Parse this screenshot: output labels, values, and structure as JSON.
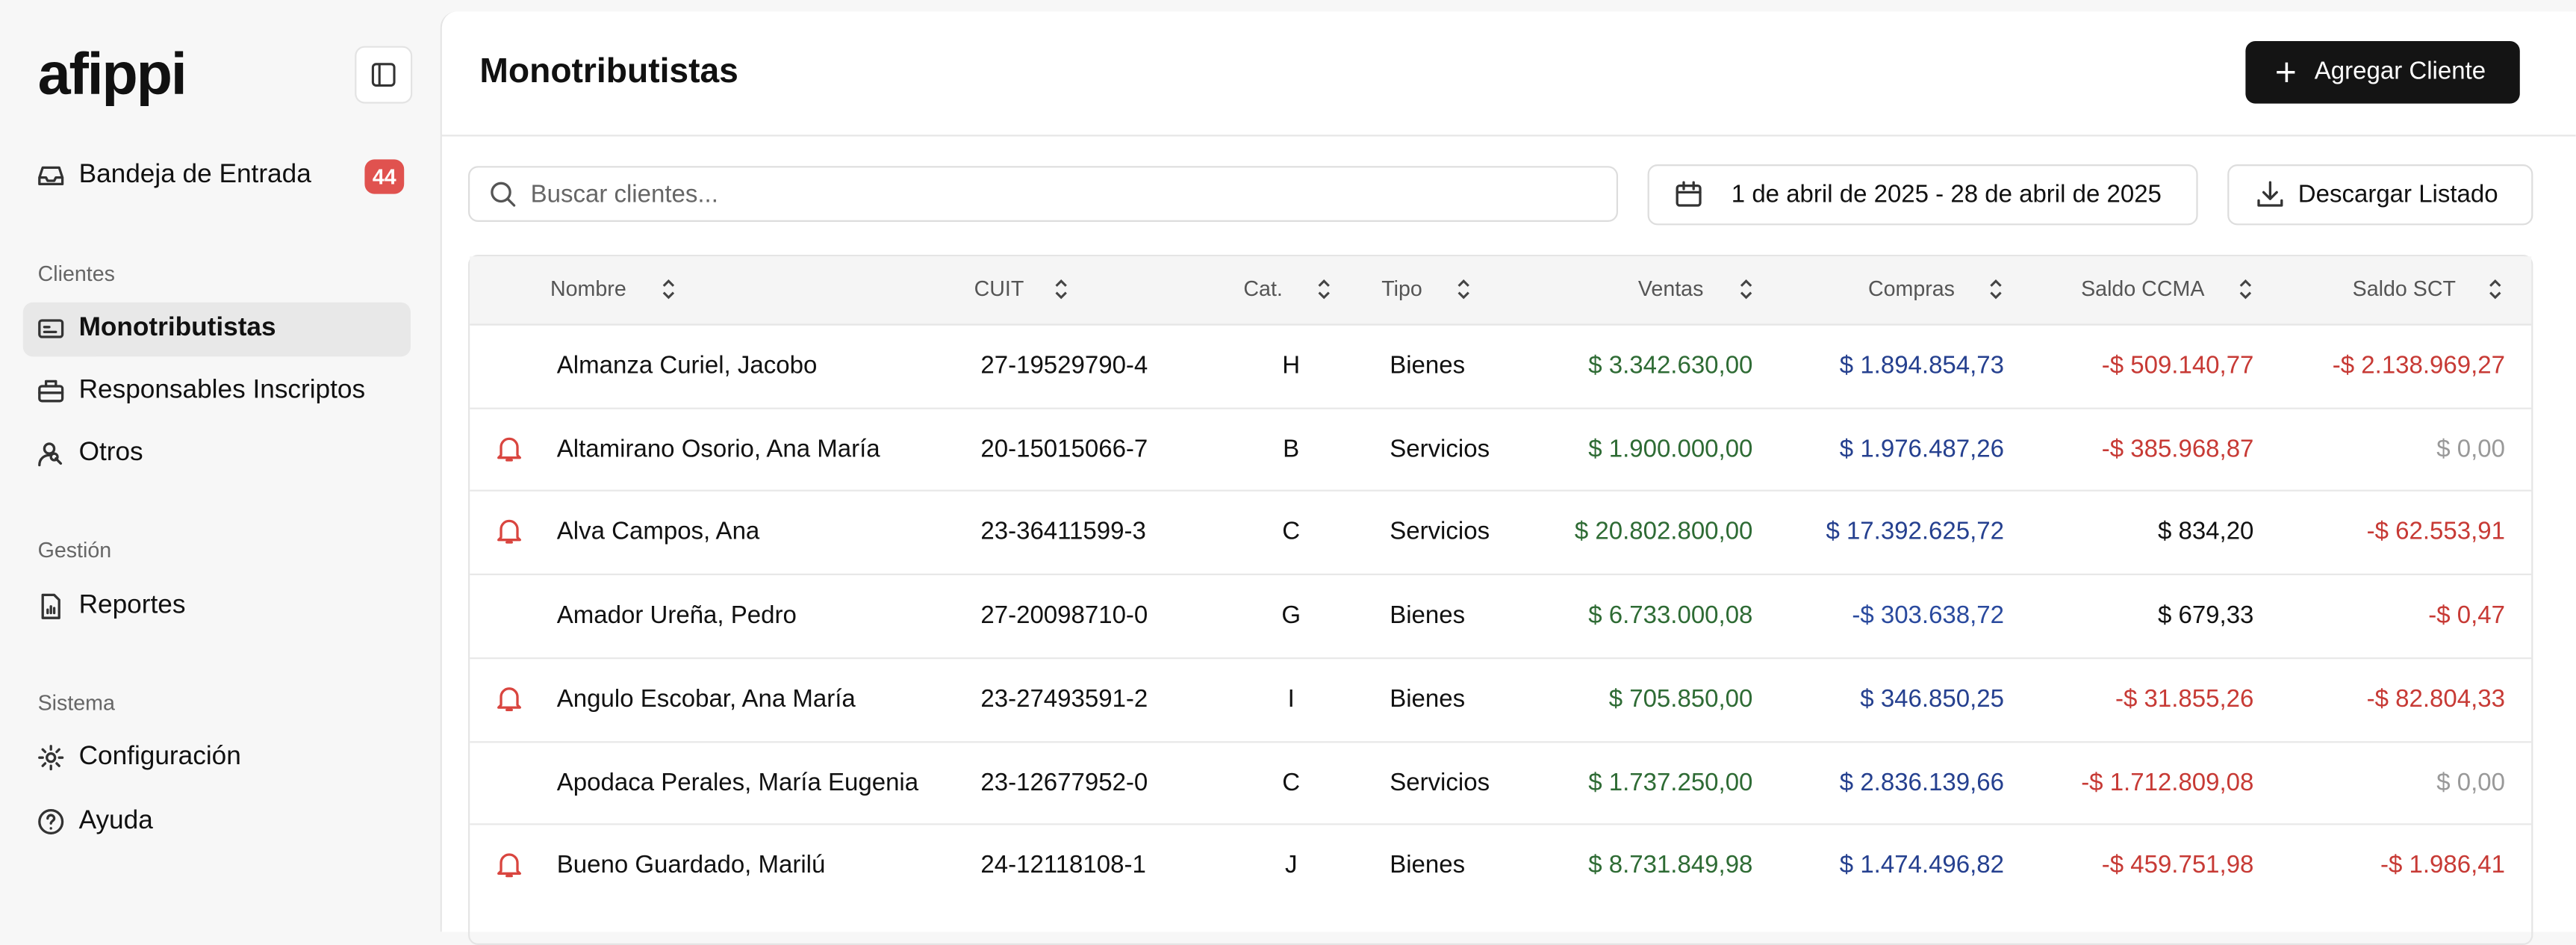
{
  "sidebar": {
    "logo": "afippi",
    "inbox": {
      "label": "Bandeja de Entrada",
      "badge": "44"
    },
    "sections": [
      {
        "title": "Clientes",
        "items": [
          "Monotributistas",
          "Responsables Inscriptos",
          "Otros"
        ]
      },
      {
        "title": "Gestión",
        "items": [
          "Reportes"
        ]
      },
      {
        "title": "Sistema",
        "items": [
          "Configuración",
          "Ayuda"
        ]
      }
    ],
    "active": "Monotributistas"
  },
  "header": {
    "title": "Monotributistas",
    "button": "Agregar Cliente"
  },
  "toolbar": {
    "search_placeholder": "Buscar clientes...",
    "date_range": "1 de abril de 2025 - 28 de abril de 2025",
    "download": "Descargar Listado"
  },
  "table": {
    "columns": [
      "Nombre",
      "CUIT",
      "Cat.",
      "Tipo",
      "Ventas",
      "Compras",
      "Saldo CCMA",
      "Saldo SCT"
    ],
    "rows": [
      {
        "alert": false,
        "cells": [
          "Almanza Curiel, Jacobo",
          "27-19529790-4",
          "H",
          "Bienes",
          "$ 3.342.630,00",
          "$ 1.894.854,73",
          "-$ 509.140,77",
          "-$ 2.138.969,27"
        ]
      },
      {
        "alert": true,
        "cells": [
          "Altamirano Osorio, Ana María",
          "20-15015066-7",
          "B",
          "Servicios",
          "$ 1.900.000,00",
          "$ 1.976.487,26",
          "-$ 385.968,87",
          "$ 0,00"
        ]
      },
      {
        "alert": true,
        "cells": [
          "Alva Campos, Ana",
          "23-36411599-3",
          "C",
          "Servicios",
          "$ 20.802.800,00",
          "$ 17.392.625,72",
          "$ 834,20",
          "-$ 62.553,91"
        ]
      },
      {
        "alert": false,
        "cells": [
          "Amador Ureña, Pedro",
          "27-20098710-0",
          "G",
          "Bienes",
          "$ 6.733.000,08",
          "-$ 303.638,72",
          "$ 679,33",
          "-$ 0,47"
        ]
      },
      {
        "alert": true,
        "cells": [
          "Angulo Escobar, Ana María",
          "23-27493591-2",
          "I",
          "Bienes",
          "$ 705.850,00",
          "$ 346.850,25",
          "-$ 31.855,26",
          "-$ 82.804,33"
        ]
      },
      {
        "alert": false,
        "cells": [
          "Apodaca Perales, María Eugenia",
          "23-12677952-0",
          "C",
          "Servicios",
          "$ 1.737.250,00",
          "$ 2.836.139,66",
          "-$ 1.712.809,08",
          "$ 0,00"
        ]
      },
      {
        "alert": true,
        "cells": [
          "Bueno Guardado, Marilú",
          "24-12118108-1",
          "J",
          "Bienes",
          "$ 8.731.849,98",
          "$ 1.474.496,82",
          "-$ 459.751,98",
          "-$ 1.986,41"
        ]
      }
    ]
  }
}
